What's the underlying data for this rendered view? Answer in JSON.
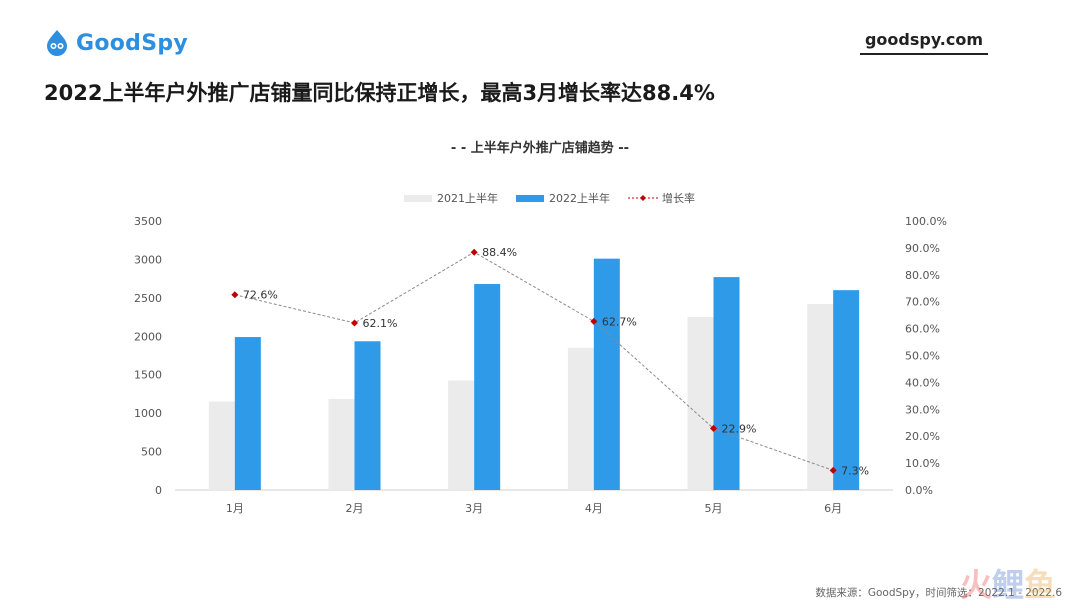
{
  "brand": {
    "logo_text": "GoodSpy",
    "site": "goodspy.com",
    "brand_color": "#2d8fe0"
  },
  "headline": "2022上半年户外推广店铺量同比保持正增长，最高3月增长率达88.4%",
  "source": "数据来源：GoodSpy，时间筛选：2022.1 - 2022.6",
  "watermark": [
    "火",
    "鲤",
    "鱼"
  ],
  "chart_data": {
    "type": "bar",
    "title": "- - 上半年户外推广店铺趋势 --",
    "categories": [
      "1月",
      "2月",
      "3月",
      "4月",
      "5月",
      "6月"
    ],
    "series": [
      {
        "name": "2021上半年",
        "type": "bar",
        "color": "#ebebeb",
        "values": [
          1150,
          1185,
          1425,
          1850,
          2250,
          2420
        ]
      },
      {
        "name": "2022上半年",
        "type": "bar",
        "color": "#2e9ae8",
        "values": [
          1990,
          1935,
          2680,
          3010,
          2770,
          2600
        ]
      },
      {
        "name": "增长率",
        "type": "line",
        "axis": "right",
        "color": "#c00000",
        "values": [
          72.6,
          62.1,
          88.4,
          62.7,
          22.9,
          7.3
        ],
        "labels": [
          "72.6%",
          "62.1%",
          "88.4%",
          "62.7%",
          "22.9%",
          "7.3%"
        ]
      }
    ],
    "y_left": {
      "min": 0,
      "max": 3500,
      "ticks": [
        "0",
        "500",
        "1000",
        "1500",
        "2000",
        "2500",
        "3000",
        "3500"
      ]
    },
    "y_right": {
      "min": 0,
      "max": 100,
      "ticks": [
        "0.0%",
        "10.0%",
        "20.0%",
        "30.0%",
        "40.0%",
        "50.0%",
        "60.0%",
        "70.0%",
        "80.0%",
        "90.0%",
        "100.0%"
      ]
    },
    "grid": false,
    "legend_position": "top"
  }
}
